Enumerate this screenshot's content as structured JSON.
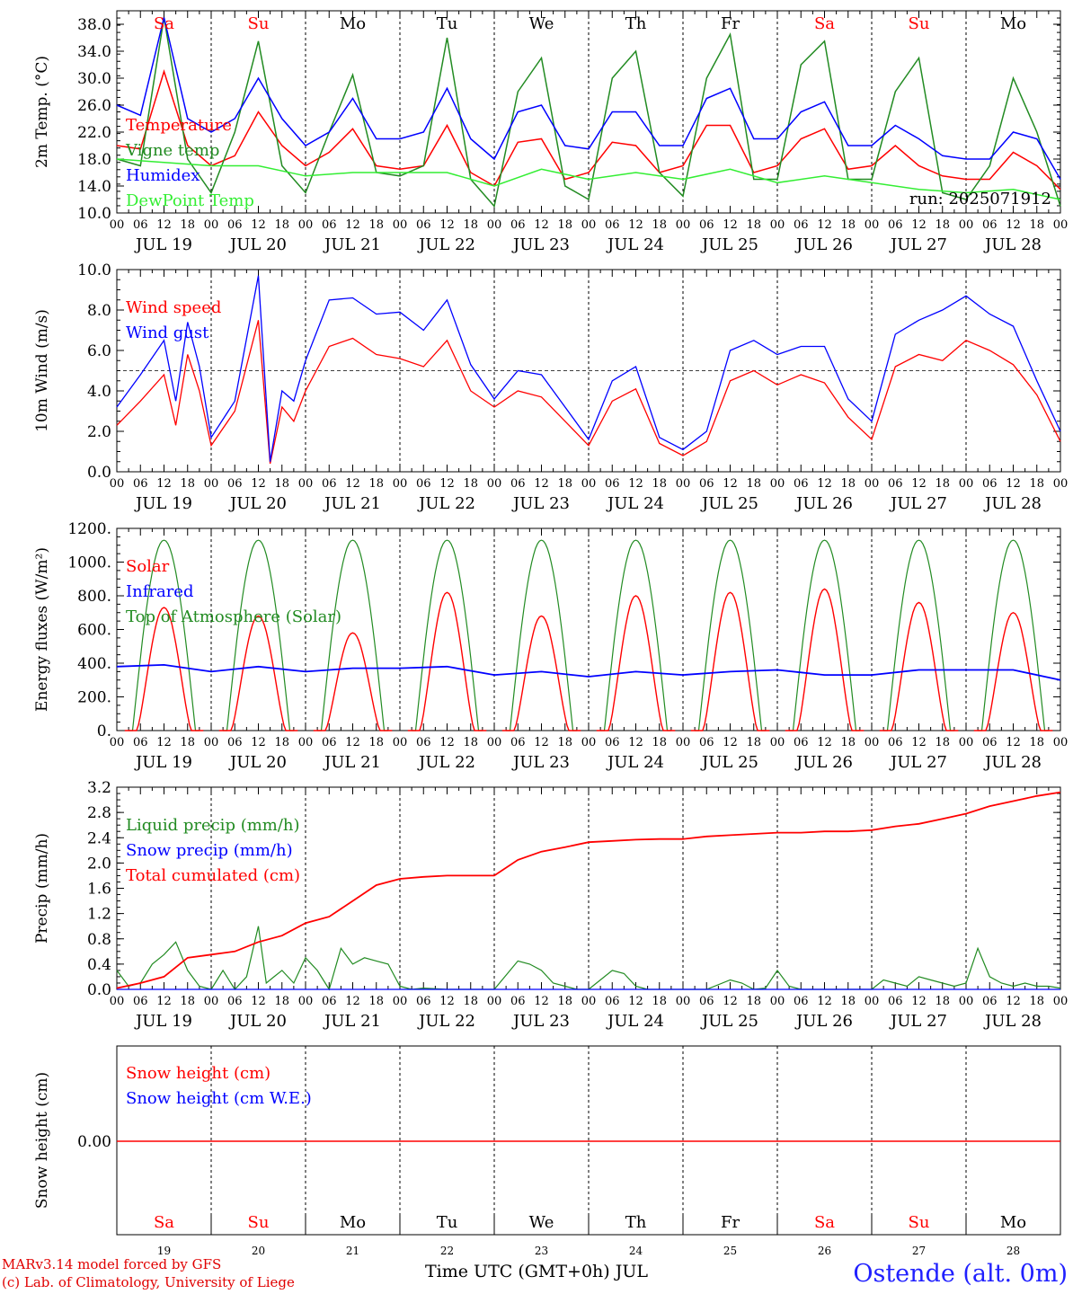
{
  "chart_data": [
    {
      "type": "line",
      "ylabel": "2m Temp. (°C)",
      "yticks": [
        "10.0",
        "14.0",
        "18.0",
        "22.0",
        "26.0",
        "30.0",
        "34.0",
        "38.0"
      ],
      "ylim": [
        10,
        40
      ],
      "x_unit": "hours since JUL 19 00 UTC",
      "run_label": "run: 2025071912",
      "series": [
        {
          "name": "Temperature",
          "color": "#ff0000",
          "x": [
            0,
            6,
            12,
            18,
            24,
            30,
            36,
            42,
            48,
            54,
            60,
            66,
            72,
            78,
            84,
            90,
            96,
            102,
            108,
            114,
            120,
            126,
            132,
            138,
            144,
            150,
            156,
            162,
            168,
            174,
            180,
            186,
            192,
            198,
            204,
            210,
            216,
            222,
            228,
            234,
            240
          ],
          "y": [
            20,
            19.5,
            31,
            20,
            17,
            18.5,
            25,
            20,
            17,
            19,
            22.5,
            17,
            16.5,
            17,
            23,
            16,
            14,
            20.5,
            21,
            15,
            16,
            20.5,
            20,
            16,
            17,
            23,
            23,
            16,
            17,
            21,
            22.5,
            16.5,
            17,
            20,
            17,
            15.5,
            15,
            15,
            19,
            17,
            13.5
          ]
        },
        {
          "name": "Vigne temp",
          "color": "#228B22",
          "x": [
            0,
            6,
            12,
            18,
            24,
            30,
            36,
            42,
            48,
            54,
            60,
            66,
            72,
            78,
            84,
            90,
            96,
            102,
            108,
            114,
            120,
            126,
            132,
            138,
            144,
            150,
            156,
            162,
            168,
            174,
            180,
            186,
            192,
            198,
            204,
            210,
            216,
            222,
            228,
            234,
            240
          ],
          "y": [
            18,
            17,
            39,
            18,
            13,
            22,
            35.5,
            17,
            13,
            22,
            30.5,
            16,
            15.5,
            17,
            36,
            15,
            11,
            28,
            33,
            14,
            12,
            30,
            34,
            16,
            12.5,
            30,
            36.5,
            15,
            15,
            32,
            35.5,
            15,
            15,
            28,
            33,
            13,
            12,
            17,
            30,
            22,
            11
          ]
        },
        {
          "name": "Humidex",
          "color": "#0000ff",
          "x": [
            0,
            6,
            12,
            18,
            24,
            30,
            36,
            42,
            48,
            54,
            60,
            66,
            72,
            78,
            84,
            90,
            96,
            102,
            108,
            114,
            120,
            126,
            132,
            138,
            144,
            150,
            156,
            162,
            168,
            174,
            180,
            186,
            192,
            198,
            204,
            210,
            216,
            222,
            228,
            234,
            240
          ],
          "y": [
            26,
            24.5,
            39,
            24,
            22,
            24,
            30,
            24,
            20,
            22,
            27,
            21,
            21,
            22,
            28.5,
            21,
            18,
            25,
            26,
            20,
            19.5,
            25,
            25,
            20,
            20,
            27,
            28.5,
            21,
            21,
            25,
            26.5,
            20,
            20,
            23,
            21,
            18.5,
            18,
            18,
            22,
            21,
            15
          ]
        },
        {
          "name": "DewPoint Temp",
          "color": "#33ee33",
          "x": [
            0,
            12,
            24,
            36,
            48,
            60,
            72,
            84,
            96,
            108,
            120,
            132,
            144,
            156,
            168,
            180,
            192,
            204,
            216,
            228,
            240
          ],
          "y": [
            18,
            17.5,
            17,
            17,
            15.5,
            16,
            16,
            16,
            14,
            16.5,
            15,
            16,
            15,
            16.5,
            14.5,
            15.5,
            14.5,
            13.5,
            13,
            13.5,
            12
          ]
        }
      ]
    },
    {
      "type": "line",
      "ylabel": "10m Wind (m/s)",
      "yticks": [
        "0.0",
        "2.0",
        "4.0",
        "6.0",
        "8.0",
        "10.0"
      ],
      "ylim": [
        0,
        10
      ],
      "series": [
        {
          "name": "Wind speed",
          "color": "#ff0000",
          "x": [
            0,
            6,
            12,
            15,
            18,
            21,
            24,
            30,
            36,
            39,
            42,
            45,
            48,
            54,
            60,
            66,
            72,
            78,
            84,
            90,
            96,
            102,
            108,
            114,
            120,
            126,
            132,
            138,
            144,
            150,
            156,
            162,
            168,
            174,
            180,
            186,
            192,
            198,
            204,
            210,
            216,
            222,
            228,
            234,
            240
          ],
          "y": [
            2.3,
            3.5,
            4.8,
            2.3,
            5.8,
            4,
            1.3,
            3,
            7.5,
            0.4,
            3.2,
            2.5,
            4,
            6.2,
            6.6,
            5.8,
            5.6,
            5.2,
            6.5,
            4,
            3.2,
            4,
            3.7,
            2.5,
            1.3,
            3.5,
            4.1,
            1.4,
            0.8,
            1.5,
            4.5,
            5,
            4.3,
            4.8,
            4.4,
            2.7,
            1.6,
            5.2,
            5.8,
            5.5,
            6.5,
            6,
            5.3,
            3.8,
            1.5
          ]
        },
        {
          "name": "Wind gust",
          "color": "#0000ff",
          "x": [
            0,
            6,
            12,
            15,
            18,
            21,
            24,
            30,
            36,
            39,
            42,
            45,
            48,
            54,
            60,
            66,
            72,
            78,
            84,
            90,
            96,
            102,
            108,
            114,
            120,
            126,
            132,
            138,
            144,
            150,
            156,
            162,
            168,
            174,
            180,
            186,
            192,
            198,
            204,
            210,
            216,
            222,
            228,
            234,
            240
          ],
          "y": [
            3.2,
            4.8,
            6.5,
            3.5,
            7.4,
            5.2,
            1.7,
            3.5,
            9.7,
            0.5,
            4,
            3.5,
            5.5,
            8.5,
            8.6,
            7.8,
            7.9,
            7,
            8.5,
            5.3,
            3.6,
            5,
            4.8,
            3.2,
            1.6,
            4.5,
            5.2,
            1.7,
            1.1,
            2,
            6,
            6.5,
            5.8,
            6.2,
            6.2,
            3.6,
            2.5,
            6.8,
            7.5,
            8,
            8.7,
            7.8,
            7.2,
            4.5,
            2
          ]
        }
      ],
      "reference_line": 5.0
    },
    {
      "type": "line",
      "ylabel": "Energy fluxes (W/m²)",
      "yticks": [
        "0.",
        "200.",
        "400.",
        "600.",
        "800.",
        "1000.",
        "1200."
      ],
      "ylim": [
        0,
        1200
      ],
      "series": [
        {
          "name": "Solar",
          "color": "#ff0000",
          "peaks": [
            730,
            680,
            580,
            820,
            680,
            800,
            820,
            840,
            760,
            700
          ]
        },
        {
          "name": "Infrared",
          "color": "#0000ff",
          "x": [
            0,
            12,
            24,
            36,
            48,
            60,
            72,
            84,
            96,
            108,
            120,
            132,
            144,
            156,
            168,
            180,
            192,
            204,
            216,
            228,
            240
          ],
          "y": [
            380,
            390,
            350,
            380,
            350,
            370,
            370,
            380,
            330,
            350,
            320,
            350,
            330,
            350,
            360,
            330,
            330,
            360,
            360,
            360,
            300
          ]
        },
        {
          "name": "Top of Atmosphere (Solar)",
          "color": "#228B22",
          "peak": 1130
        }
      ]
    },
    {
      "type": "line",
      "ylabel": "Precip (mm/h)",
      "yticks": [
        "0.0",
        "0.4",
        "0.8",
        "1.2",
        "1.6",
        "2.0",
        "2.4",
        "2.8",
        "3.2"
      ],
      "ylim": [
        0,
        3.2
      ],
      "series": [
        {
          "name": "Liquid precip (mm/h)",
          "color": "#228B22",
          "x": [
            0,
            3,
            6,
            9,
            12,
            15,
            18,
            21,
            24,
            27,
            30,
            33,
            36,
            38,
            40,
            42,
            45,
            48,
            51,
            54,
            57,
            60,
            63,
            66,
            69,
            72,
            75,
            78,
            84,
            90,
            96,
            102,
            105,
            108,
            111,
            114,
            117,
            120,
            126,
            129,
            132,
            135,
            138,
            144,
            150,
            156,
            159,
            162,
            165,
            168,
            171,
            174,
            180,
            186,
            192,
            195,
            198,
            201,
            204,
            207,
            210,
            213,
            216,
            219,
            222,
            225,
            228,
            231,
            234,
            237,
            240
          ],
          "y": [
            0.3,
            0.05,
            0.1,
            0.4,
            0.55,
            0.75,
            0.3,
            0.05,
            0,
            0.3,
            0,
            0.2,
            1,
            0.1,
            0.2,
            0.3,
            0.1,
            0.5,
            0.3,
            0,
            0.65,
            0.4,
            0.5,
            0.45,
            0.4,
            0.05,
            0,
            0.02,
            0,
            0,
            0,
            0.45,
            0.4,
            0.3,
            0.1,
            0.05,
            0,
            0,
            0.3,
            0.25,
            0.05,
            0,
            0,
            0,
            0,
            0.15,
            0.1,
            0,
            0.02,
            0.3,
            0.05,
            0,
            0,
            0,
            0,
            0.15,
            0.1,
            0.05,
            0.2,
            0.15,
            0.1,
            0.05,
            0.1,
            0.65,
            0.2,
            0.1,
            0.05,
            0.1,
            0.05,
            0.05,
            0.02
          ]
        },
        {
          "name": "Snow precip (mm/h)",
          "color": "#0000ff",
          "x": [
            0,
            240
          ],
          "y": [
            0,
            0
          ]
        },
        {
          "name": "Total cumulated (cm)",
          "color": "#ff0000",
          "x": [
            0,
            6,
            12,
            18,
            24,
            30,
            36,
            42,
            48,
            54,
            60,
            66,
            72,
            78,
            84,
            90,
            96,
            102,
            108,
            114,
            120,
            126,
            132,
            138,
            144,
            150,
            156,
            162,
            168,
            174,
            180,
            186,
            192,
            198,
            204,
            210,
            216,
            222,
            228,
            234,
            240
          ],
          "y": [
            0.02,
            0.1,
            0.2,
            0.5,
            0.55,
            0.6,
            0.75,
            0.85,
            1.05,
            1.15,
            1.4,
            1.65,
            1.75,
            1.78,
            1.8,
            1.8,
            1.8,
            2.05,
            2.18,
            2.25,
            2.33,
            2.35,
            2.37,
            2.38,
            2.38,
            2.42,
            2.44,
            2.46,
            2.48,
            2.48,
            2.5,
            2.5,
            2.52,
            2.58,
            2.62,
            2.7,
            2.78,
            2.9,
            2.98,
            3.06,
            3.12
          ]
        }
      ]
    },
    {
      "type": "line",
      "ylabel": "Snow height (cm)",
      "yticks": [
        "0.00"
      ],
      "series": [
        {
          "name": "Snow height (cm)",
          "color": "#ff0000",
          "x": [
            0,
            240
          ],
          "y": [
            0,
            0
          ]
        },
        {
          "name": "Snow height (cm W.E.)",
          "color": "#0000ff",
          "x": [
            0,
            240
          ],
          "y": [
            0,
            0
          ]
        }
      ]
    }
  ],
  "days": [
    {
      "abbr": "Sa",
      "date": "JUL 19",
      "num": "19",
      "color": "#ff0000"
    },
    {
      "abbr": "Su",
      "date": "JUL 20",
      "num": "20",
      "color": "#ff0000"
    },
    {
      "abbr": "Mo",
      "date": "JUL 21",
      "num": "21",
      "color": "#000000"
    },
    {
      "abbr": "Tu",
      "date": "JUL 22",
      "num": "22",
      "color": "#000000"
    },
    {
      "abbr": "We",
      "date": "JUL 23",
      "num": "23",
      "color": "#000000"
    },
    {
      "abbr": "Th",
      "date": "JUL 24",
      "num": "24",
      "color": "#000000"
    },
    {
      "abbr": "Fr",
      "date": "JUL 25",
      "num": "25",
      "color": "#000000"
    },
    {
      "abbr": "Sa",
      "date": "JUL 26",
      "num": "26",
      "color": "#ff0000"
    },
    {
      "abbr": "Su",
      "date": "JUL 27",
      "num": "27",
      "color": "#ff0000"
    },
    {
      "abbr": "Mo",
      "date": "JUL 28",
      "num": "28",
      "color": "#000000"
    }
  ],
  "hour_labels": [
    "00",
    "06",
    "12",
    "18"
  ],
  "final_hour_label": "00",
  "footer": {
    "credit_line1": "MARv3.14 model forced by GFS",
    "credit_line2": "(c) Lab. of Climatology, University of Liege",
    "x_axis_title": "Time UTC (GMT+0h) JUL",
    "station": "Ostende (alt. 0m)"
  }
}
